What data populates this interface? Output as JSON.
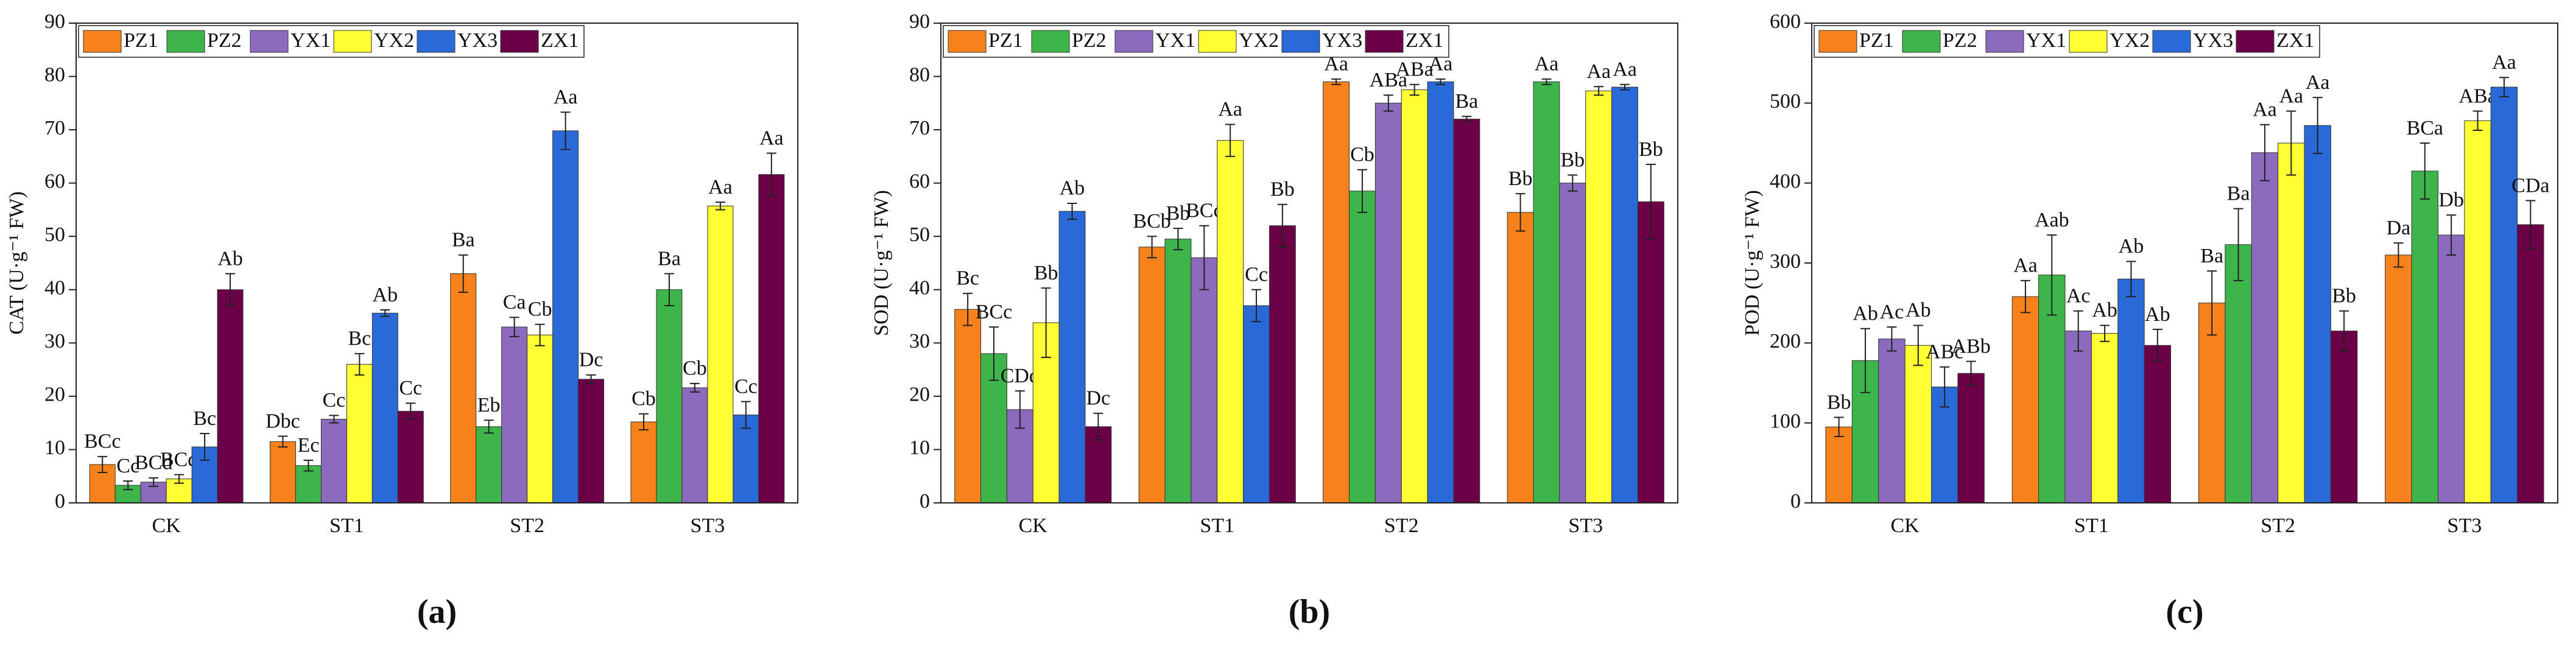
{
  "chart_data": [
    {
      "type": "bar",
      "y_label": "CAT (U·g⁻¹ FW)",
      "panel_label": "(a)",
      "categories": [
        "CK",
        "ST1",
        "ST2",
        "ST3"
      ],
      "ylim": [
        0,
        90
      ],
      "yticks": [
        0,
        10,
        20,
        30,
        40,
        50,
        60,
        70,
        80,
        90
      ],
      "legend": "top-left",
      "series": [
        {
          "name": "PZ1",
          "color": "#f7821b",
          "values": [
            7.2,
            11.5,
            43,
            15.2
          ],
          "errors": [
            1.5,
            1,
            3.5,
            1.5
          ],
          "labels": [
            "BCc",
            "Dbc",
            "Ba",
            "Cb"
          ]
        },
        {
          "name": "PZ2",
          "color": "#3db54a",
          "values": [
            3.3,
            7,
            14.3,
            40
          ],
          "errors": [
            0.8,
            1,
            1.2,
            3
          ],
          "labels": [
            "Cc",
            "Ec",
            "Eb",
            "Ba"
          ]
        },
        {
          "name": "YX1",
          "color": "#8c6bbf",
          "values": [
            3.9,
            15.7,
            33,
            21.6
          ],
          "errors": [
            0.8,
            0.7,
            1.8,
            0.8
          ],
          "labels": [
            "BCd",
            "Cc",
            "Ca",
            "Cb"
          ]
        },
        {
          "name": "YX2",
          "color": "#ffff33",
          "values": [
            4.5,
            26,
            31.5,
            55.7
          ],
          "errors": [
            0.8,
            2,
            2,
            0.7
          ],
          "labels": [
            "BCd",
            "Bc",
            "Cb",
            "Aa"
          ]
        },
        {
          "name": "YX3",
          "color": "#2a6ad8",
          "values": [
            10.5,
            35.6,
            69.8,
            16.5
          ],
          "errors": [
            2.5,
            0.6,
            3.5,
            2.5
          ],
          "labels": [
            "Bc",
            "Ab",
            "Aa",
            "Cc"
          ]
        },
        {
          "name": "ZX1",
          "color": "#6b0047",
          "values": [
            40,
            17.2,
            23.2,
            61.6
          ],
          "errors": [
            3,
            1.5,
            0.8,
            4
          ],
          "labels": [
            "Ab",
            "Cc",
            "Dc",
            "Aa"
          ]
        }
      ]
    },
    {
      "type": "bar",
      "y_label": "SOD (U·g⁻¹ FW)",
      "panel_label": "(b)",
      "categories": [
        "CK",
        "ST1",
        "ST2",
        "ST3"
      ],
      "ylim": [
        0,
        90
      ],
      "yticks": [
        0,
        10,
        20,
        30,
        40,
        50,
        60,
        70,
        80,
        90
      ],
      "legend": "top-left",
      "series": [
        {
          "name": "PZ1",
          "color": "#f7821b",
          "values": [
            36.3,
            48,
            79,
            54.5
          ],
          "errors": [
            3,
            2,
            0.5,
            3.5
          ],
          "labels": [
            "Bc",
            "BCb",
            "Aa",
            "Bb"
          ]
        },
        {
          "name": "PZ2",
          "color": "#3db54a",
          "values": [
            28,
            49.5,
            58.5,
            79
          ],
          "errors": [
            5,
            2,
            4,
            0.5
          ],
          "labels": [
            "BCc",
            "Bb",
            "Cb",
            "Aa"
          ]
        },
        {
          "name": "YX1",
          "color": "#8c6bbf",
          "values": [
            17.5,
            46,
            75,
            60
          ],
          "errors": [
            3.5,
            6,
            1.5,
            1.5
          ],
          "labels": [
            "CDd",
            "BCc",
            "ABa",
            "Bb"
          ]
        },
        {
          "name": "YX2",
          "color": "#ffff33",
          "values": [
            33.8,
            68,
            77.5,
            77.3
          ],
          "errors": [
            6.5,
            3,
            1,
            0.8
          ],
          "labels": [
            "Bb",
            "Aa",
            "ABa",
            "Aa"
          ]
        },
        {
          "name": "YX3",
          "color": "#2a6ad8",
          "values": [
            54.7,
            37,
            79,
            78
          ],
          "errors": [
            1.5,
            3,
            0.5,
            0.5
          ],
          "labels": [
            "Ab",
            "Cc",
            "Aa",
            "Aa"
          ]
        },
        {
          "name": "ZX1",
          "color": "#6b0047",
          "values": [
            14.3,
            52,
            72,
            56.5
          ],
          "errors": [
            2.5,
            4,
            0.5,
            7
          ],
          "labels": [
            "Dc",
            "Bb",
            "Ba",
            "Bb"
          ]
        }
      ]
    },
    {
      "type": "bar",
      "y_label": "POD (U·g⁻¹ FW)",
      "panel_label": "(c)",
      "categories": [
        "CK",
        "ST1",
        "ST2",
        "ST3"
      ],
      "ylim": [
        0,
        600
      ],
      "yticks": [
        0,
        100,
        200,
        300,
        400,
        500,
        600
      ],
      "legend": "top-left",
      "series": [
        {
          "name": "PZ1",
          "color": "#f7821b",
          "values": [
            95,
            258,
            250,
            310
          ],
          "errors": [
            12,
            20,
            40,
            15
          ],
          "labels": [
            "Bb",
            "Aa",
            "Ba",
            "Da"
          ]
        },
        {
          "name": "PZ2",
          "color": "#3db54a",
          "values": [
            178,
            285,
            323,
            415
          ],
          "errors": [
            40,
            50,
            45,
            35
          ],
          "labels": [
            "Ab",
            "Aab",
            "Ba",
            "BCa"
          ]
        },
        {
          "name": "YX1",
          "color": "#8c6bbf",
          "values": [
            205,
            215,
            438,
            335
          ],
          "errors": [
            15,
            25,
            35,
            25
          ],
          "labels": [
            "Ac",
            "Ac",
            "Aa",
            "Db"
          ]
        },
        {
          "name": "YX2",
          "color": "#ffff33",
          "values": [
            197,
            212,
            450,
            478
          ],
          "errors": [
            25,
            10,
            40,
            12
          ],
          "labels": [
            "Ab",
            "Ab",
            "Aa",
            "ABa"
          ]
        },
        {
          "name": "YX3",
          "color": "#2a6ad8",
          "values": [
            145,
            280,
            472,
            520
          ],
          "errors": [
            25,
            22,
            35,
            12
          ],
          "labels": [
            "ABc",
            "Ab",
            "Aa",
            "Aa"
          ]
        },
        {
          "name": "ZX1",
          "color": "#6b0047",
          "values": [
            162,
            197,
            215,
            348
          ],
          "errors": [
            15,
            20,
            25,
            30
          ],
          "labels": [
            "ABb",
            "Ab",
            "Bb",
            "CDa"
          ]
        }
      ]
    }
  ]
}
